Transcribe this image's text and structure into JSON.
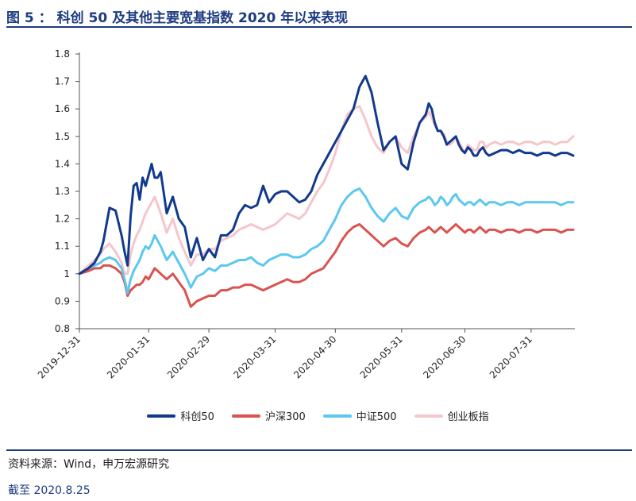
{
  "title": "图 5 ： 科创 50 及其他主要宽基指数 2020 年以来表现",
  "source": "资料来源：Wind，申万宏源研究",
  "note": "截至 2020.8.25",
  "colors": {
    "title": "#1d3c82",
    "kc50": "#123a8c",
    "hs300": "#d9534f",
    "zz500": "#5bc8ef",
    "cyb": "#f5c6cb"
  },
  "chart_data": {
    "type": "line",
    "title": "",
    "xlabel": "",
    "ylabel": "",
    "ylim": [
      0.8,
      1.8
    ],
    "yticks": [
      "1.8",
      "1.7",
      "1.6",
      "1.5",
      "1.4",
      "1.3",
      "1.2",
      "1.1",
      "1",
      "0.9",
      "0.8"
    ],
    "xticks": [
      "2019-12-31",
      "2020-01-31",
      "2020-02-29",
      "2020-03-31",
      "2020-04-30",
      "2020-05-31",
      "2020-06-30",
      "2020-07-31"
    ],
    "x": [
      0,
      3,
      5,
      7,
      8,
      10,
      12,
      14,
      15,
      16,
      17,
      18,
      19,
      20,
      21,
      22,
      23,
      24,
      25,
      26,
      27,
      29,
      31,
      33,
      35,
      37,
      39,
      41,
      43,
      45,
      47,
      49,
      51,
      53,
      55,
      57,
      59,
      61,
      63,
      65,
      67,
      69,
      71,
      73,
      75,
      77,
      79,
      81,
      83,
      85,
      87,
      89,
      91,
      93,
      95,
      97,
      99,
      101,
      103,
      105,
      107,
      109,
      111,
      113,
      115,
      116,
      117,
      118,
      119,
      120,
      121,
      122,
      123,
      124,
      125,
      126,
      127,
      128,
      129,
      130,
      131,
      132,
      133,
      134,
      135,
      136,
      138,
      140,
      142,
      144,
      146,
      148,
      150,
      152,
      154,
      156,
      158,
      160,
      162,
      164
    ],
    "series": [
      {
        "name": "科创50",
        "values": [
          1.0,
          1.02,
          1.04,
          1.08,
          1.12,
          1.24,
          1.23,
          1.14,
          1.08,
          1.03,
          1.21,
          1.32,
          1.33,
          1.27,
          1.35,
          1.32,
          1.36,
          1.4,
          1.35,
          1.35,
          1.37,
          1.22,
          1.28,
          1.2,
          1.17,
          1.06,
          1.13,
          1.05,
          1.09,
          1.06,
          1.14,
          1.14,
          1.16,
          1.22,
          1.25,
          1.24,
          1.25,
          1.32,
          1.26,
          1.29,
          1.3,
          1.3,
          1.28,
          1.26,
          1.27,
          1.3,
          1.36,
          1.4,
          1.44,
          1.48,
          1.52,
          1.56,
          1.6,
          1.68,
          1.72,
          1.66,
          1.55,
          1.45,
          1.48,
          1.5,
          1.4,
          1.38,
          1.48,
          1.55,
          1.58,
          1.62,
          1.6,
          1.55,
          1.52,
          1.52,
          1.5,
          1.47,
          1.48,
          1.49,
          1.5,
          1.47,
          1.45,
          1.44,
          1.46,
          1.45,
          1.43,
          1.43,
          1.45,
          1.46,
          1.44,
          1.43,
          1.44,
          1.45,
          1.45,
          1.44,
          1.45,
          1.44,
          1.44,
          1.43,
          1.44,
          1.44,
          1.43,
          1.44,
          1.44,
          1.43
        ]
      },
      {
        "name": "沪深300",
        "values": [
          1.0,
          1.01,
          1.02,
          1.02,
          1.03,
          1.03,
          1.02,
          1.0,
          0.97,
          0.92,
          0.94,
          0.95,
          0.96,
          0.96,
          0.97,
          0.99,
          0.98,
          1.0,
          1.02,
          1.01,
          1.0,
          0.98,
          1.0,
          0.97,
          0.94,
          0.88,
          0.9,
          0.91,
          0.92,
          0.92,
          0.94,
          0.94,
          0.95,
          0.95,
          0.96,
          0.96,
          0.95,
          0.94,
          0.95,
          0.96,
          0.97,
          0.98,
          0.97,
          0.97,
          0.98,
          1.0,
          1.01,
          1.02,
          1.05,
          1.08,
          1.12,
          1.15,
          1.17,
          1.18,
          1.16,
          1.14,
          1.12,
          1.1,
          1.12,
          1.13,
          1.11,
          1.1,
          1.13,
          1.15,
          1.16,
          1.17,
          1.16,
          1.15,
          1.16,
          1.17,
          1.16,
          1.15,
          1.16,
          1.17,
          1.18,
          1.17,
          1.16,
          1.15,
          1.16,
          1.16,
          1.15,
          1.16,
          1.17,
          1.16,
          1.15,
          1.16,
          1.16,
          1.15,
          1.16,
          1.16,
          1.15,
          1.16,
          1.16,
          1.15,
          1.16,
          1.16,
          1.16,
          1.15,
          1.16,
          1.16
        ]
      },
      {
        "name": "中证500",
        "values": [
          1.0,
          1.02,
          1.03,
          1.04,
          1.05,
          1.06,
          1.05,
          1.02,
          0.98,
          0.93,
          0.98,
          1.01,
          1.03,
          1.05,
          1.08,
          1.1,
          1.09,
          1.11,
          1.14,
          1.12,
          1.1,
          1.05,
          1.08,
          1.04,
          1.0,
          0.95,
          0.99,
          1.0,
          1.02,
          1.01,
          1.03,
          1.03,
          1.04,
          1.05,
          1.05,
          1.06,
          1.04,
          1.03,
          1.05,
          1.06,
          1.07,
          1.07,
          1.06,
          1.06,
          1.07,
          1.09,
          1.1,
          1.12,
          1.16,
          1.2,
          1.25,
          1.28,
          1.3,
          1.31,
          1.28,
          1.24,
          1.21,
          1.19,
          1.22,
          1.24,
          1.21,
          1.2,
          1.24,
          1.26,
          1.27,
          1.28,
          1.27,
          1.25,
          1.26,
          1.28,
          1.27,
          1.25,
          1.26,
          1.28,
          1.29,
          1.27,
          1.26,
          1.25,
          1.26,
          1.26,
          1.25,
          1.26,
          1.27,
          1.26,
          1.25,
          1.26,
          1.26,
          1.25,
          1.26,
          1.26,
          1.25,
          1.26,
          1.26,
          1.26,
          1.26,
          1.26,
          1.26,
          1.25,
          1.26,
          1.26
        ]
      },
      {
        "name": "创业板指",
        "values": [
          1.0,
          1.03,
          1.05,
          1.07,
          1.09,
          1.11,
          1.08,
          1.04,
          1.0,
          1.0,
          1.07,
          1.11,
          1.14,
          1.16,
          1.19,
          1.22,
          1.24,
          1.26,
          1.28,
          1.25,
          1.22,
          1.15,
          1.2,
          1.13,
          1.08,
          1.03,
          1.07,
          1.07,
          1.09,
          1.09,
          1.12,
          1.13,
          1.14,
          1.16,
          1.17,
          1.18,
          1.17,
          1.16,
          1.17,
          1.18,
          1.2,
          1.22,
          1.21,
          1.2,
          1.22,
          1.26,
          1.3,
          1.33,
          1.38,
          1.44,
          1.52,
          1.58,
          1.6,
          1.61,
          1.56,
          1.5,
          1.46,
          1.44,
          1.48,
          1.5,
          1.46,
          1.44,
          1.5,
          1.55,
          1.57,
          1.59,
          1.57,
          1.54,
          1.52,
          1.52,
          1.51,
          1.48,
          1.47,
          1.48,
          1.5,
          1.48,
          1.46,
          1.44,
          1.47,
          1.46,
          1.45,
          1.45,
          1.48,
          1.48,
          1.46,
          1.47,
          1.48,
          1.47,
          1.48,
          1.48,
          1.47,
          1.48,
          1.48,
          1.47,
          1.48,
          1.48,
          1.47,
          1.48,
          1.48,
          1.5
        ]
      }
    ],
    "legend_position": "bottom"
  }
}
